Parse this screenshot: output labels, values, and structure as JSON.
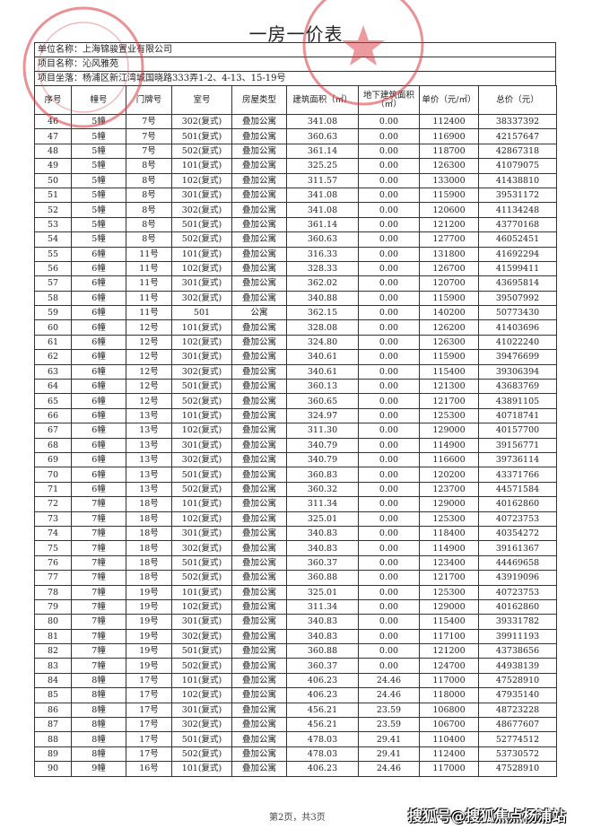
{
  "title": "一房一价表",
  "info": {
    "company": "单位名称：上海锦骏置业有限公司",
    "project": "项目名称：沁风雅苑",
    "address": "项目坐落：杨浦区新江湾城国晓路333弄1-2、4-13、15-19号"
  },
  "columns": [
    "序号",
    "幢号",
    "门牌号",
    "室号",
    "房屋类型",
    "建筑面积（㎡）",
    "地下建筑面积（㎡）",
    "单价（元/㎡）",
    "总价（元）"
  ],
  "rows": [
    [
      "46",
      "5幢",
      "7号",
      "302(复式)",
      "叠加公寓",
      "341.08",
      "0.00",
      "112400",
      "38337392"
    ],
    [
      "47",
      "5幢",
      "7号",
      "501(复式)",
      "叠加公寓",
      "360.63",
      "0.00",
      "116900",
      "42157647"
    ],
    [
      "48",
      "5幢",
      "7号",
      "502(复式)",
      "叠加公寓",
      "361.14",
      "0.00",
      "118700",
      "42867318"
    ],
    [
      "49",
      "5幢",
      "8号",
      "101(复式)",
      "叠加公寓",
      "325.25",
      "0.00",
      "126300",
      "41079075"
    ],
    [
      "50",
      "5幢",
      "8号",
      "102(复式)",
      "叠加公寓",
      "311.57",
      "0.00",
      "133000",
      "41438810"
    ],
    [
      "51",
      "5幢",
      "8号",
      "301(复式)",
      "叠加公寓",
      "341.08",
      "0.00",
      "115900",
      "39531172"
    ],
    [
      "52",
      "5幢",
      "8号",
      "302(复式)",
      "叠加公寓",
      "341.08",
      "0.00",
      "120600",
      "41134248"
    ],
    [
      "53",
      "5幢",
      "8号",
      "501(复式)",
      "叠加公寓",
      "361.14",
      "0.00",
      "121200",
      "43770168"
    ],
    [
      "54",
      "5幢",
      "8号",
      "502(复式)",
      "叠加公寓",
      "360.63",
      "0.00",
      "127700",
      "46052451"
    ],
    [
      "55",
      "6幢",
      "11号",
      "101(复式)",
      "叠加公寓",
      "316.33",
      "0.00",
      "131800",
      "41692294"
    ],
    [
      "56",
      "6幢",
      "11号",
      "102(复式)",
      "叠加公寓",
      "328.33",
      "0.00",
      "126700",
      "41599411"
    ],
    [
      "57",
      "6幢",
      "11号",
      "301(复式)",
      "叠加公寓",
      "362.02",
      "0.00",
      "120700",
      "43695814"
    ],
    [
      "58",
      "6幢",
      "11号",
      "302(复式)",
      "叠加公寓",
      "340.88",
      "0.00",
      "115900",
      "39507992"
    ],
    [
      "59",
      "6幢",
      "11号",
      "501",
      "公寓",
      "362.15",
      "0.00",
      "140200",
      "50773430"
    ],
    [
      "60",
      "6幢",
      "12号",
      "101(复式)",
      "叠加公寓",
      "328.08",
      "0.00",
      "126200",
      "41403696"
    ],
    [
      "61",
      "6幢",
      "12号",
      "102(复式)",
      "叠加公寓",
      "324.80",
      "0.00",
      "126300",
      "41022240"
    ],
    [
      "62",
      "6幢",
      "12号",
      "301(复式)",
      "叠加公寓",
      "340.61",
      "0.00",
      "115900",
      "39476699"
    ],
    [
      "63",
      "6幢",
      "12号",
      "302(复式)",
      "叠加公寓",
      "340.61",
      "0.00",
      "115400",
      "39306394"
    ],
    [
      "64",
      "6幢",
      "12号",
      "501(复式)",
      "叠加公寓",
      "360.13",
      "0.00",
      "121300",
      "43683769"
    ],
    [
      "65",
      "6幢",
      "12号",
      "502(复式)",
      "叠加公寓",
      "360.65",
      "0.00",
      "121700",
      "43891105"
    ],
    [
      "66",
      "6幢",
      "13号",
      "101(复式)",
      "叠加公寓",
      "324.97",
      "0.00",
      "125300",
      "40718741"
    ],
    [
      "67",
      "6幢",
      "13号",
      "102(复式)",
      "叠加公寓",
      "311.30",
      "0.00",
      "129000",
      "40157700"
    ],
    [
      "68",
      "6幢",
      "13号",
      "301(复式)",
      "叠加公寓",
      "340.79",
      "0.00",
      "114900",
      "39156771"
    ],
    [
      "69",
      "6幢",
      "13号",
      "302(复式)",
      "叠加公寓",
      "340.79",
      "0.00",
      "116600",
      "39736114"
    ],
    [
      "70",
      "6幢",
      "13号",
      "501(复式)",
      "叠加公寓",
      "360.83",
      "0.00",
      "120200",
      "43371766"
    ],
    [
      "71",
      "6幢",
      "13号",
      "502(复式)",
      "叠加公寓",
      "360.32",
      "0.00",
      "123700",
      "44571584"
    ],
    [
      "72",
      "7幢",
      "18号",
      "101(复式)",
      "叠加公寓",
      "311.34",
      "0.00",
      "129000",
      "40162860"
    ],
    [
      "73",
      "7幢",
      "18号",
      "102(复式)",
      "叠加公寓",
      "325.01",
      "0.00",
      "125300",
      "40723753"
    ],
    [
      "74",
      "7幢",
      "18号",
      "301(复式)",
      "叠加公寓",
      "340.83",
      "0.00",
      "118400",
      "40354272"
    ],
    [
      "75",
      "7幢",
      "18号",
      "302(复式)",
      "叠加公寓",
      "340.83",
      "0.00",
      "114900",
      "39161367"
    ],
    [
      "76",
      "7幢",
      "18号",
      "501(复式)",
      "叠加公寓",
      "360.37",
      "0.00",
      "123400",
      "44469658"
    ],
    [
      "77",
      "7幢",
      "18号",
      "502(复式)",
      "叠加公寓",
      "360.88",
      "0.00",
      "121700",
      "43919096"
    ],
    [
      "78",
      "7幢",
      "19号",
      "101(复式)",
      "叠加公寓",
      "325.01",
      "0.00",
      "125300",
      "40723753"
    ],
    [
      "79",
      "7幢",
      "19号",
      "102(复式)",
      "叠加公寓",
      "311.34",
      "0.00",
      "129000",
      "40162860"
    ],
    [
      "80",
      "7幢",
      "19号",
      "301(复式)",
      "叠加公寓",
      "340.83",
      "0.00",
      "115400",
      "39331782"
    ],
    [
      "81",
      "7幢",
      "19号",
      "302(复式)",
      "叠加公寓",
      "340.83",
      "0.00",
      "117100",
      "39911193"
    ],
    [
      "82",
      "7幢",
      "19号",
      "501(复式)",
      "叠加公寓",
      "360.88",
      "0.00",
      "121200",
      "43738656"
    ],
    [
      "83",
      "7幢",
      "19号",
      "502(复式)",
      "叠加公寓",
      "360.37",
      "0.00",
      "124700",
      "44938139"
    ],
    [
      "84",
      "8幢",
      "17号",
      "101(复式)",
      "叠加公寓",
      "406.23",
      "24.46",
      "117000",
      "47528910"
    ],
    [
      "85",
      "8幢",
      "17号",
      "102(复式)",
      "叠加公寓",
      "406.23",
      "24.46",
      "118000",
      "47935140"
    ],
    [
      "86",
      "8幢",
      "17号",
      "301(复式)",
      "叠加公寓",
      "456.21",
      "23.59",
      "106800",
      "48723228"
    ],
    [
      "87",
      "8幢",
      "17号",
      "302(复式)",
      "叠加公寓",
      "456.21",
      "23.59",
      "106700",
      "48677607"
    ],
    [
      "88",
      "8幢",
      "17号",
      "501(复式)",
      "叠加公寓",
      "478.03",
      "29.41",
      "110400",
      "52774512"
    ],
    [
      "89",
      "8幢",
      "17号",
      "502(复式)",
      "叠加公寓",
      "478.03",
      "29.41",
      "112400",
      "53730572"
    ],
    [
      "90",
      "9幢",
      "16号",
      "101(复式)",
      "叠加公寓",
      "406.23",
      "24.46",
      "117000",
      "47528910"
    ]
  ],
  "footer": "第2页，共3页",
  "watermark": "搜狐号@搜狐焦点杨浦站",
  "stamps": [
    {
      "name": "developer-seal",
      "text": "SHANGHAI JIN JUN REALTY",
      "color": "#d9363e"
    },
    {
      "name": "authority-seal",
      "text": "房地产管理局",
      "color": "#d9363e"
    }
  ]
}
